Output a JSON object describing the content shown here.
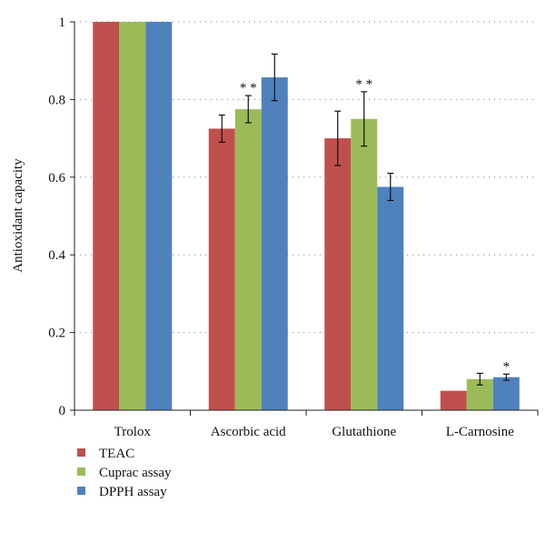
{
  "chart_data": {
    "type": "bar",
    "title": "",
    "xlabel": "",
    "ylabel": "Antioxidant capacity",
    "ylim": [
      0,
      1
    ],
    "yticks": [
      0,
      0.2,
      0.4,
      0.6,
      0.8,
      1
    ],
    "ytick_labels": [
      "0",
      "0.2",
      "0.4",
      "0.6",
      "0.8",
      "1"
    ],
    "grid": "horizontal dotted",
    "legend_position": "bottom-left",
    "categories": [
      "Trolox",
      "Ascorbic acid",
      "Glutathione",
      "L-Carnosine"
    ],
    "series": [
      {
        "name": "TEAC",
        "color": "#c0504d",
        "values": [
          1.0,
          0.725,
          0.7,
          0.05
        ],
        "errors": [
          0.0,
          0.035,
          0.07,
          0.0
        ]
      },
      {
        "name": "Cuprac assay",
        "color": "#9bbb59",
        "values": [
          1.0,
          0.775,
          0.75,
          0.08
        ],
        "errors": [
          0.0,
          0.035,
          0.07,
          0.015
        ]
      },
      {
        "name": "DPPH assay",
        "color": "#4f81bd",
        "values": [
          1.0,
          0.857,
          0.575,
          0.085
        ],
        "errors": [
          0.0,
          0.06,
          0.035,
          0.008
        ]
      }
    ],
    "annotations": [
      {
        "category": "Ascorbic acid",
        "series": "Cuprac assay",
        "text": "**"
      },
      {
        "category": "Glutathione",
        "series": "Cuprac assay",
        "text": "**"
      },
      {
        "category": "L-Carnosine",
        "series": "DPPH assay",
        "text": "*"
      }
    ]
  }
}
